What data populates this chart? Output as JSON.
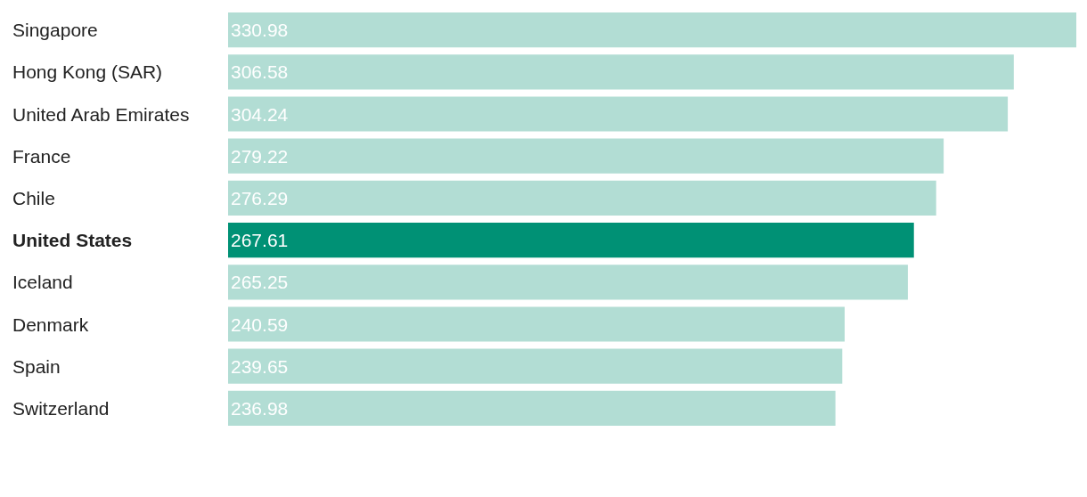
{
  "chart_data": {
    "type": "bar",
    "orientation": "horizontal",
    "data_labels": true,
    "tick_labels": "y",
    "legend": false,
    "categories": [
      "Singapore",
      "Hong Kong (SAR)",
      "United Arab Emirates",
      "France",
      "Chile",
      "United States",
      "Iceland",
      "Denmark",
      "Spain",
      "Switzerland"
    ],
    "values": [
      330.98,
      306.58,
      304.24,
      279.22,
      276.29,
      267.61,
      265.25,
      240.59,
      239.65,
      236.98
    ],
    "colors": [
      "#b2ddd4",
      "#b2ddd4",
      "#b2ddd4",
      "#b2ddd4",
      "#b2ddd4",
      "#009175",
      "#b2ddd4",
      "#b2ddd4",
      "#b2ddd4",
      "#b2ddd4"
    ]
  }
}
